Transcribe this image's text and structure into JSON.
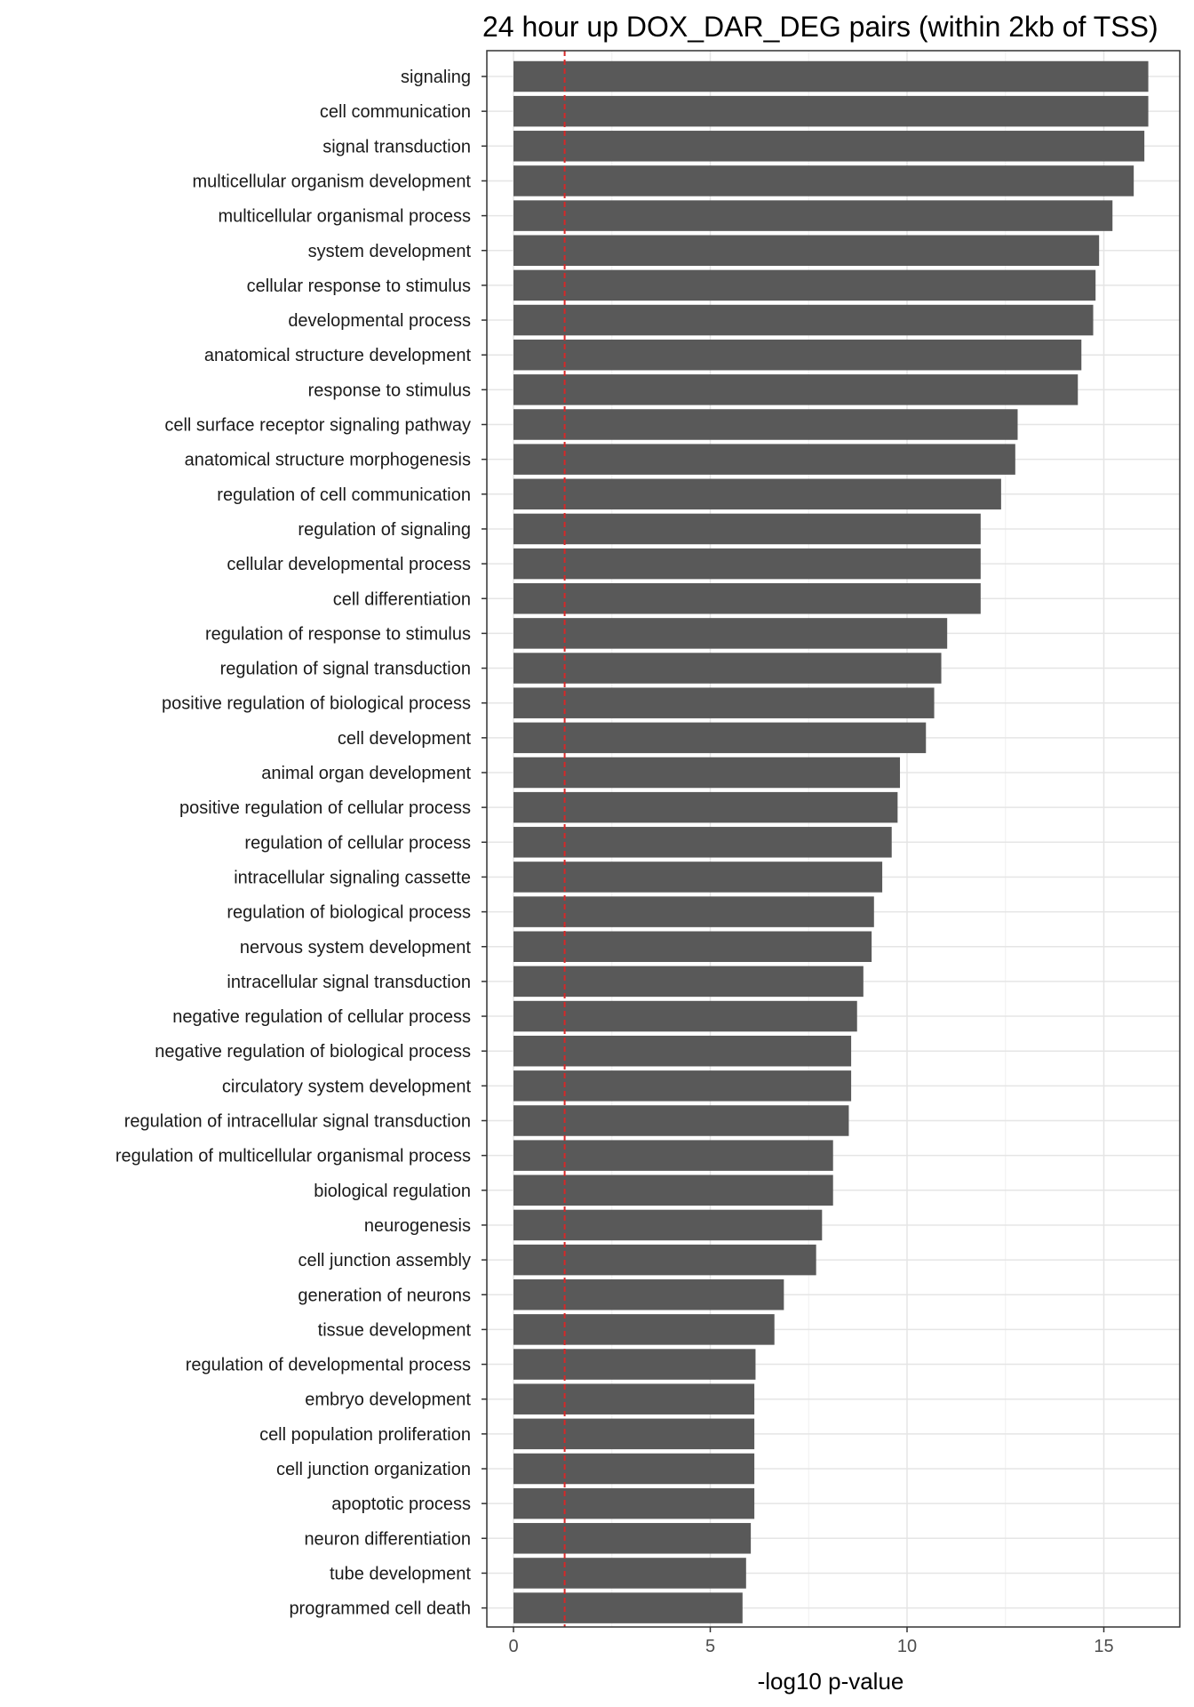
{
  "chart_data": {
    "type": "bar",
    "orientation": "horizontal",
    "title": "24 hour up DOX_DAR_DEG pairs (within 2kb of TSS)",
    "xlabel": "-log10 p-value",
    "ylabel": "",
    "xlim": [
      -0.8,
      16.9
    ],
    "xticks": [
      0,
      5,
      10,
      15
    ],
    "grid": true,
    "bar_color": "#595959",
    "threshold_line": {
      "value": 1.3,
      "color": "#d62728",
      "style": "dashed"
    },
    "categories": [
      "signaling",
      "cell communication",
      "signal transduction",
      "multicellular organism development",
      "multicellular organismal process",
      "system development",
      "cellular response to stimulus",
      "developmental process",
      "anatomical structure development",
      "response to stimulus",
      "cell surface receptor signaling pathway",
      "anatomical structure morphogenesis",
      "regulation of cell communication",
      "regulation of signaling",
      "cellular developmental process",
      "cell differentiation",
      "regulation of response to stimulus",
      "regulation of signal transduction",
      "positive regulation of biological process",
      "cell development",
      "animal organ development",
      "positive regulation of cellular process",
      "regulation of cellular process",
      "intracellular signaling cassette",
      "regulation of biological process",
      "nervous system development",
      "intracellular signal transduction",
      "negative regulation of cellular process",
      "negative regulation of biological process",
      "circulatory system development",
      "regulation of intracellular signal transduction",
      "regulation of multicellular organismal process",
      "biological regulation",
      "neurogenesis",
      "cell junction assembly",
      "generation of neurons",
      "tissue development",
      "regulation of developmental process",
      "embryo development",
      "cell population proliferation",
      "cell junction organization",
      "apoptotic process",
      "neuron differentiation",
      "tube development",
      "programmed cell death"
    ],
    "values": [
      16.13,
      16.13,
      16.03,
      15.76,
      15.22,
      14.88,
      14.79,
      14.73,
      14.43,
      14.34,
      12.81,
      12.75,
      12.39,
      11.87,
      11.87,
      11.87,
      11.02,
      10.87,
      10.69,
      10.48,
      9.82,
      9.76,
      9.61,
      9.37,
      9.16,
      9.1,
      8.89,
      8.73,
      8.58,
      8.58,
      8.52,
      8.12,
      8.12,
      7.84,
      7.69,
      6.87,
      6.63,
      6.15,
      6.12,
      6.12,
      6.12,
      6.12,
      6.03,
      5.91,
      5.82
    ]
  }
}
